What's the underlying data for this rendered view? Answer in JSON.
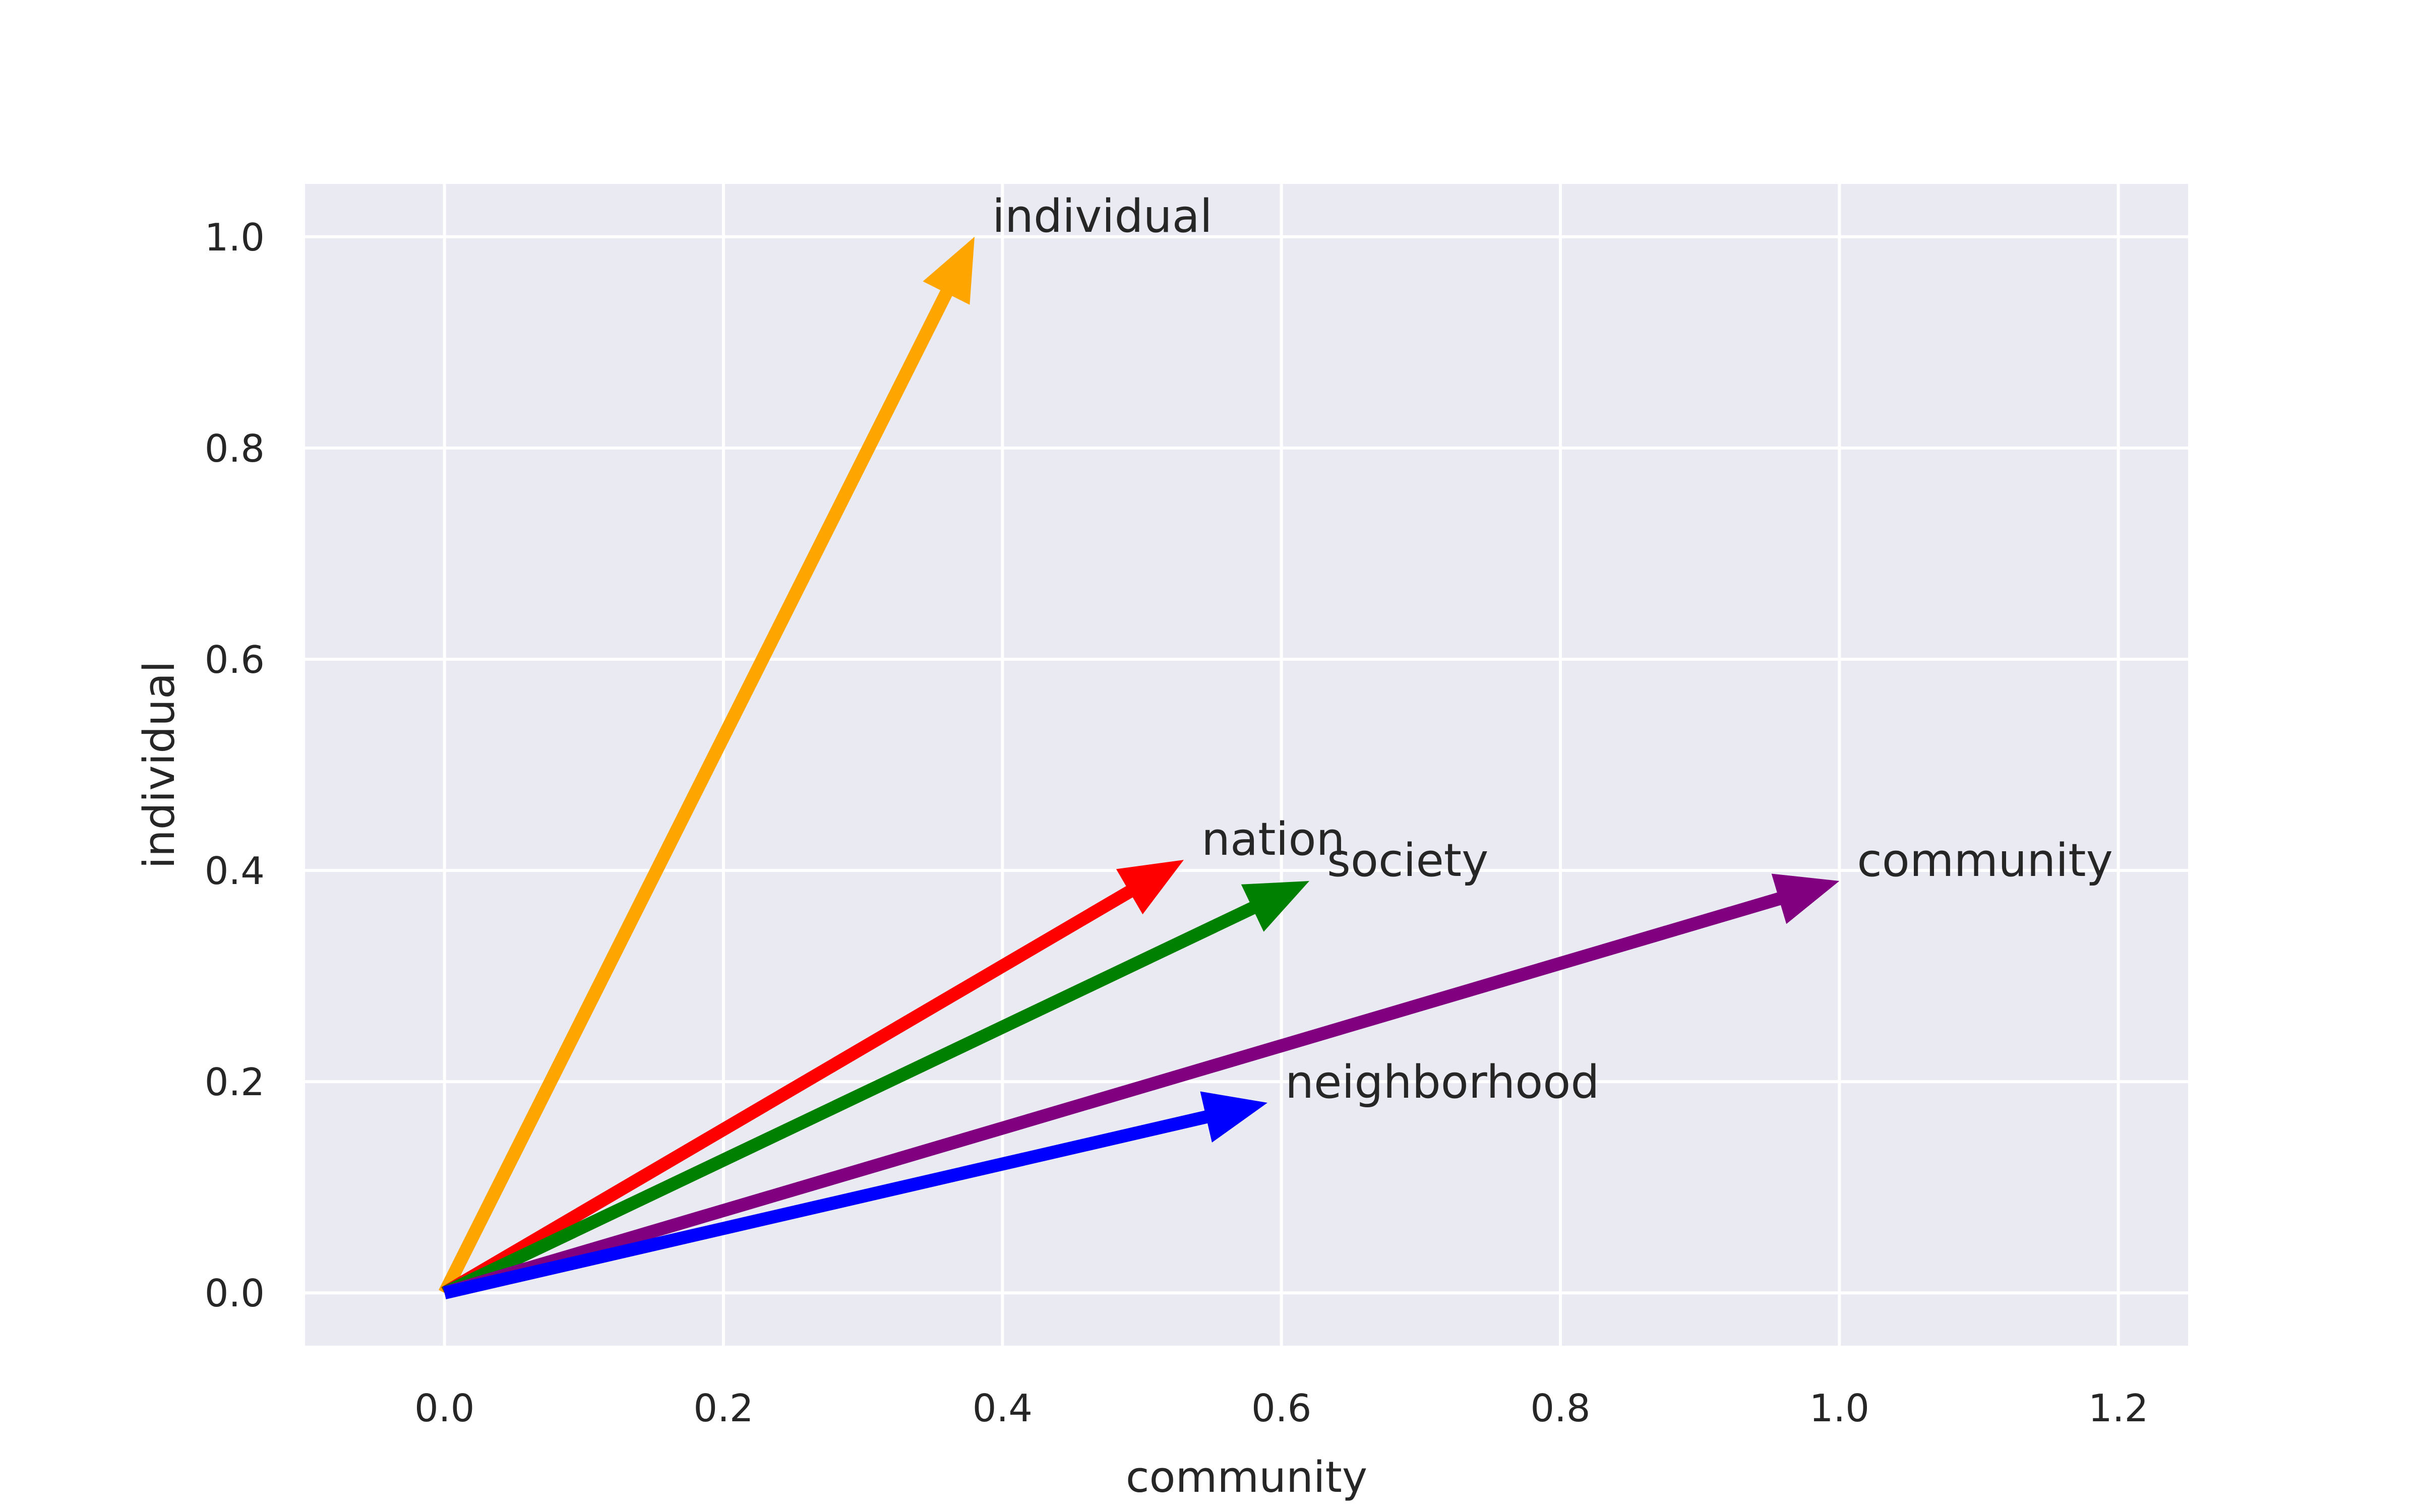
{
  "chart_data": {
    "type": "vector",
    "xlabel": "community",
    "ylabel": "individual",
    "xlim": [
      -0.1,
      1.25
    ],
    "ylim": [
      -0.05,
      1.05
    ],
    "xticks": [
      0.0,
      0.2,
      0.4,
      0.6,
      0.8,
      1.0,
      1.2
    ],
    "yticks": [
      0.0,
      0.2,
      0.4,
      0.6,
      0.8,
      1.0
    ],
    "xtick_labels": [
      "0.0",
      "0.2",
      "0.4",
      "0.6",
      "0.8",
      "1.0",
      "1.2"
    ],
    "ytick_labels": [
      "0.0",
      "0.2",
      "0.4",
      "0.6",
      "0.8",
      "1.0"
    ],
    "grid": true,
    "background": "#EAEAF2",
    "vectors": [
      {
        "label": "individual",
        "x": 0.38,
        "y": 1.0,
        "color": "#FFA500"
      },
      {
        "label": "nation",
        "x": 0.53,
        "y": 0.41,
        "color": "#FF0000"
      },
      {
        "label": "society",
        "x": 0.62,
        "y": 0.39,
        "color": "#008000"
      },
      {
        "label": "community",
        "x": 1.0,
        "y": 0.39,
        "color": "#800080"
      },
      {
        "label": "neighborhood",
        "x": 0.59,
        "y": 0.18,
        "color": "#0000FF"
      }
    ]
  }
}
